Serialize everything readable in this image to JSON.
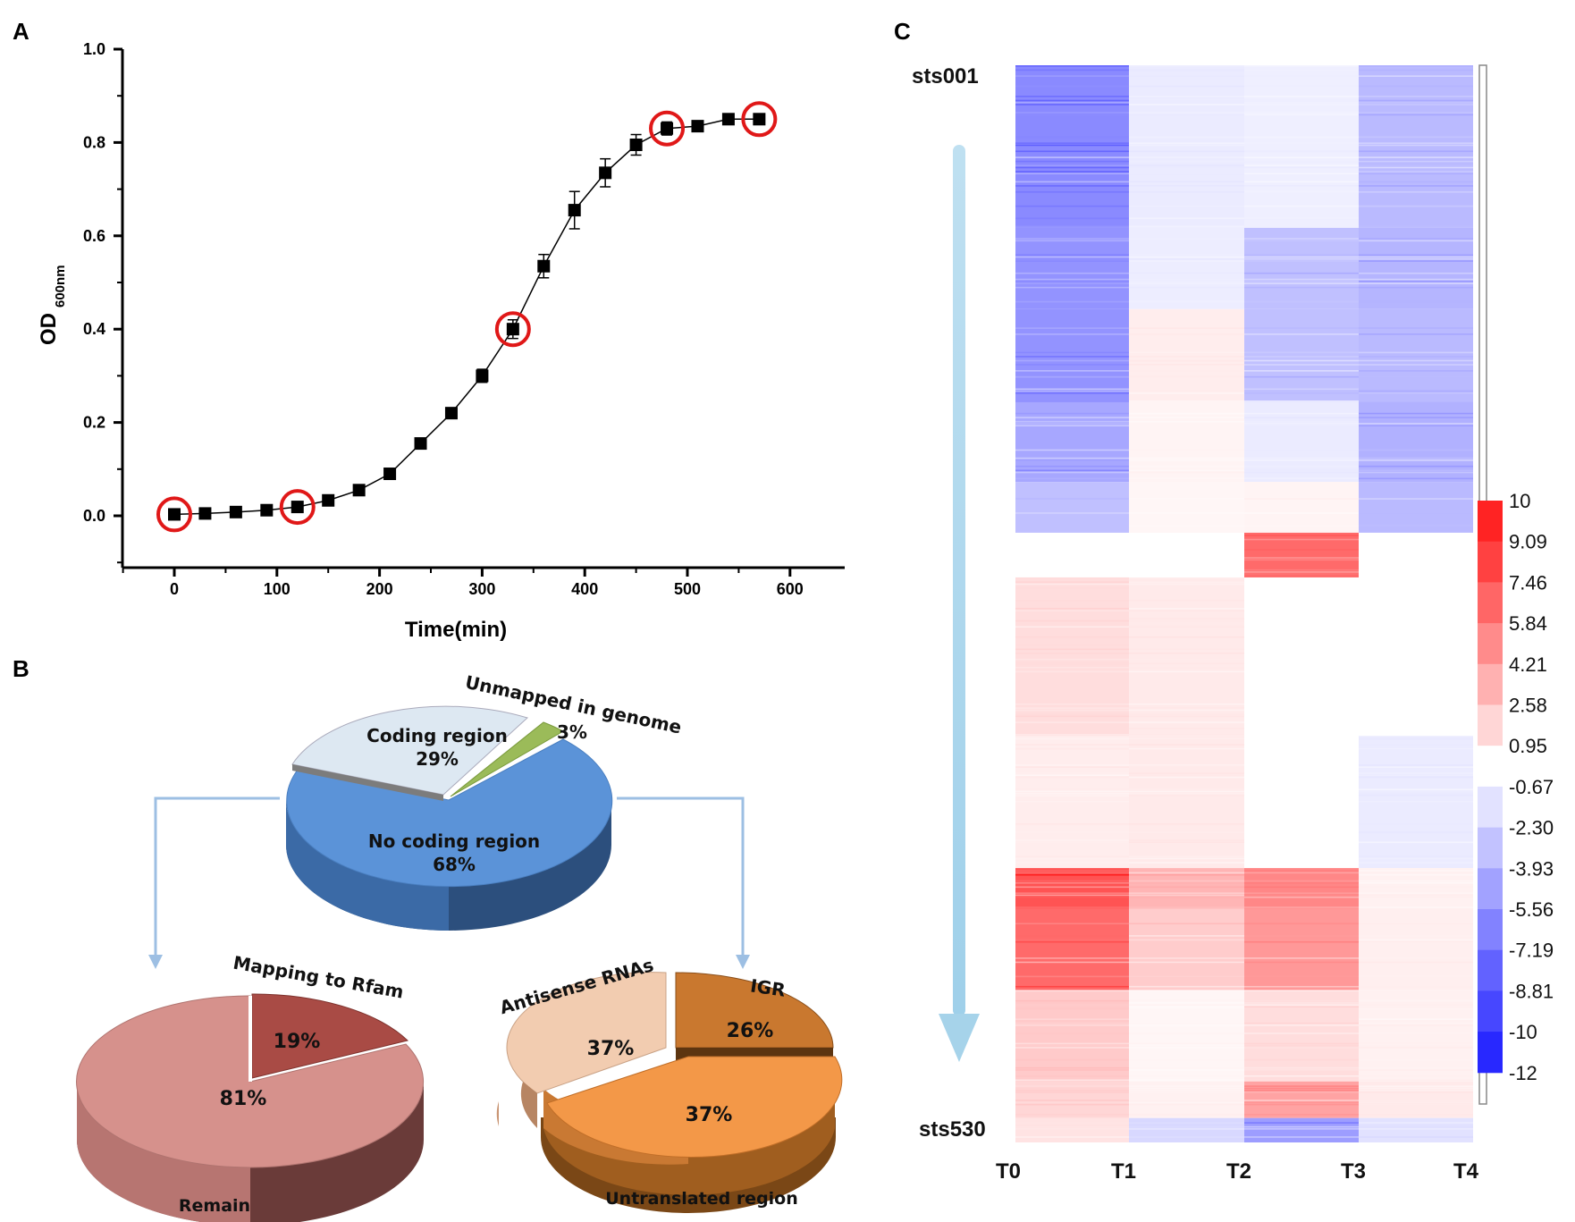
{
  "chart_data": [
    {
      "id": "A",
      "type": "scatter",
      "panel_label": "A",
      "xlabel": "Time(min)",
      "ylabel_main": "OD",
      "ylabel_sub": "600nm",
      "xlim": [
        -50,
        650
      ],
      "ylim": [
        -0.1,
        1.0
      ],
      "x_ticks": [
        0,
        100,
        200,
        300,
        400,
        500,
        600
      ],
      "y_ticks": [
        0.0,
        0.2,
        0.4,
        0.6,
        0.8,
        1.0
      ],
      "y_tick_labels": [
        "0.0",
        "0.2",
        "0.4",
        "0.6",
        "0.8",
        "1.0"
      ],
      "series": [
        {
          "name": "OD600",
          "x": [
            0,
            30,
            60,
            90,
            120,
            150,
            180,
            210,
            240,
            270,
            300,
            330,
            360,
            390,
            420,
            450,
            480,
            510,
            540,
            570
          ],
          "y": [
            0.003,
            0.005,
            0.008,
            0.012,
            0.019,
            0.033,
            0.055,
            0.09,
            0.155,
            0.22,
            0.3,
            0.4,
            0.535,
            0.655,
            0.735,
            0.795,
            0.83,
            0.835,
            0.85,
            0.85
          ],
          "err": [
            0.002,
            0.002,
            0.002,
            0.002,
            0.004,
            0.003,
            0.004,
            0.005,
            0.006,
            0.009,
            0.014,
            0.02,
            0.025,
            0.04,
            0.03,
            0.022,
            0.014,
            0.009,
            0.006,
            0.006
          ]
        }
      ],
      "highlighted_x": [
        0,
        120,
        330,
        480,
        570
      ]
    },
    {
      "id": "B-top",
      "type": "pie",
      "panel_label": "B",
      "slices": [
        {
          "label": "Coding region",
          "value": 29,
          "pct_text": "29%",
          "color": "#dde8f2"
        },
        {
          "label": "Unmapped in genome",
          "value": 3,
          "pct_text": "3%",
          "color": "#9bbb59"
        },
        {
          "label": "No coding region",
          "value": 68,
          "pct_text": "68%",
          "color": "#5b93d8"
        }
      ]
    },
    {
      "id": "B-left",
      "type": "pie",
      "slices": [
        {
          "label": "Mapping to Rfam",
          "value": 19,
          "pct_text": "19%",
          "color": "#a94b45"
        },
        {
          "label": "Remain",
          "value": 81,
          "pct_text": "81%",
          "color": "#d6918c"
        }
      ]
    },
    {
      "id": "B-right",
      "type": "pie",
      "slices": [
        {
          "label": "IGR",
          "value": 26,
          "pct_text": "26%",
          "color": "#c9782f"
        },
        {
          "label": "Untranslated region",
          "value": 37,
          "pct_text": "37%",
          "color": "#f39848"
        },
        {
          "label": "Antisense RNAs",
          "value": 37,
          "pct_text": "37%",
          "color": "#f2ccb0"
        }
      ]
    },
    {
      "id": "C",
      "type": "heatmap",
      "panel_label": "C",
      "columns": [
        "T0",
        "T1",
        "T2",
        "T3",
        "T4"
      ],
      "row_start_label": "sts001",
      "row_end_label": "sts530",
      "n_rows": 530,
      "colorbar_ticks": [
        "10",
        "9.09",
        "7.46",
        "5.84",
        "4.21",
        "2.58",
        "0.95",
        "-0.67",
        "-2.30",
        "-3.93",
        "-5.56",
        "-7.19",
        "-8.81",
        "-10",
        "-12"
      ],
      "colorbar_range": [
        -12,
        10
      ],
      "blocks": [
        {
          "rows": [
            0,
            80
          ],
          "values": [
            -6,
            -1,
            -0.8,
            -3.5
          ]
        },
        {
          "rows": [
            80,
            120
          ],
          "values": [
            -5.5,
            -0.9,
            -3.2,
            -3.8
          ]
        },
        {
          "rows": [
            120,
            165
          ],
          "values": [
            -5.5,
            0.8,
            -3.2,
            -3.5
          ]
        },
        {
          "rows": [
            165,
            205
          ],
          "values": [
            -4.5,
            0.5,
            -1.0,
            -4.0
          ]
        },
        {
          "rows": [
            205,
            230
          ],
          "values": [
            -3.2,
            0.4,
            0.5,
            -3.5
          ]
        },
        {
          "rows": [
            230,
            252
          ],
          "values": [
            0,
            0,
            6.5,
            0
          ]
        },
        {
          "rows": [
            252,
            330
          ],
          "values": [
            1.5,
            0.9,
            0,
            0
          ]
        },
        {
          "rows": [
            330,
            395
          ],
          "values": [
            0.8,
            0.9,
            0,
            -1.0
          ]
        },
        {
          "rows": [
            395,
            415
          ],
          "values": [
            7.5,
            3.2,
            5.2,
            0.6
          ]
        },
        {
          "rows": [
            415,
            455
          ],
          "values": [
            6.5,
            2.2,
            4.5,
            0.7
          ]
        },
        {
          "rows": [
            455,
            500
          ],
          "values": [
            2.3,
            0.4,
            1.5,
            0.6
          ]
        },
        {
          "rows": [
            500,
            518
          ],
          "values": [
            1.8,
            0.6,
            4.0,
            0.9
          ]
        },
        {
          "rows": [
            518,
            530
          ],
          "values": [
            1.2,
            -2.0,
            -5.0,
            -1.5
          ]
        }
      ]
    }
  ]
}
